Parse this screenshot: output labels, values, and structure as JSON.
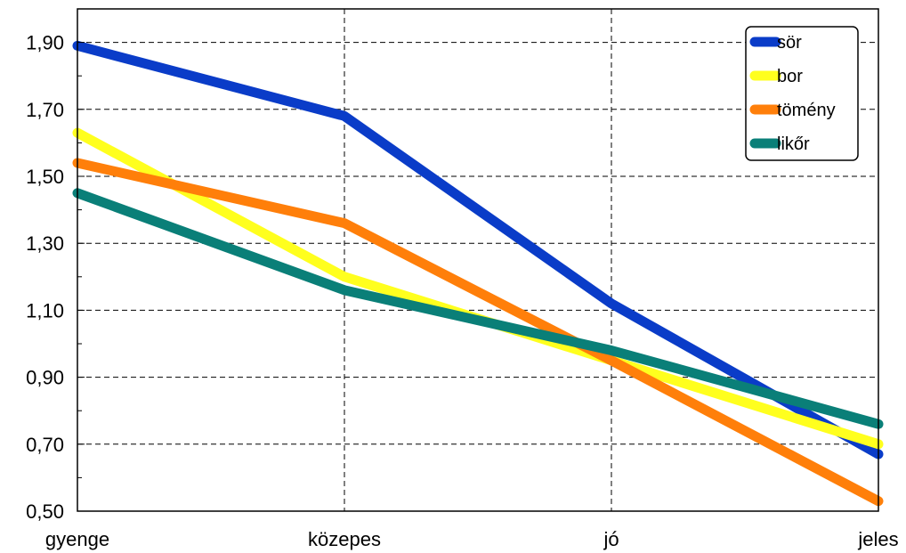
{
  "chart_data": {
    "type": "line",
    "title": "",
    "xlabel": "",
    "ylabel": "",
    "categories": [
      "gyenge",
      "közepes",
      "jó",
      "jeles"
    ],
    "ylim": [
      0.5,
      2.0
    ],
    "yticks": [
      "0,50",
      "0,70",
      "0,90",
      "1,10",
      "1,30",
      "1,50",
      "1,70",
      "1,90"
    ],
    "ytick_values": [
      0.5,
      0.7,
      0.9,
      1.1,
      1.3,
      1.5,
      1.7,
      1.9
    ],
    "grid": true,
    "legend_position": "top-right",
    "series": [
      {
        "name": "sör",
        "color": "#0a3cc8",
        "values": [
          1.89,
          1.68,
          1.12,
          0.67
        ]
      },
      {
        "name": "bor",
        "color": "#ffff1e",
        "values": [
          1.63,
          1.2,
          0.95,
          0.7
        ]
      },
      {
        "name": "tömény",
        "color": "#ff7f0a",
        "values": [
          1.54,
          1.36,
          0.95,
          0.53
        ]
      },
      {
        "name": "likőr",
        "color": "#0a7f78",
        "values": [
          1.45,
          1.16,
          0.98,
          0.76
        ]
      }
    ]
  }
}
